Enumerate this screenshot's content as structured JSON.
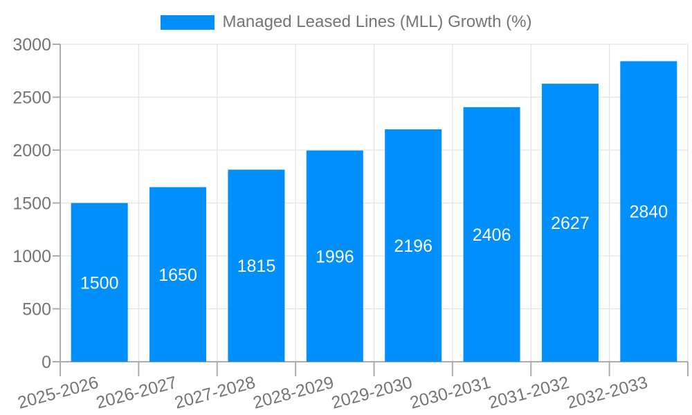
{
  "chart_data": {
    "type": "bar",
    "title": "",
    "categories": [
      "2025-2026",
      "2026-2027",
      "2027-2028",
      "2028-2029",
      "2029-2030",
      "2030-2031",
      "2031-2032",
      "2032-2033"
    ],
    "series": [
      {
        "name": "Managed Leased Lines (MLL) Growth (%)",
        "values": [
          1500,
          1650,
          1815,
          1996,
          2196,
          2406,
          2627,
          2840
        ]
      }
    ],
    "xlabel": "",
    "ylabel": "",
    "ylim": [
      0,
      3000
    ],
    "yticks": [
      0,
      500,
      1000,
      1500,
      2000,
      2500,
      3000
    ],
    "grid": true,
    "legend_position": "top",
    "x_label_rotation_deg": 15,
    "value_label_position": "inside-center",
    "colors": {
      "bar": "#008FFB",
      "value_label": "#FFFFFF",
      "tick_label": "#757575",
      "legend_text": "#757575",
      "grid": "#E3E3E3",
      "axis": "#ABABAB",
      "background": "#FFFFFF"
    }
  }
}
